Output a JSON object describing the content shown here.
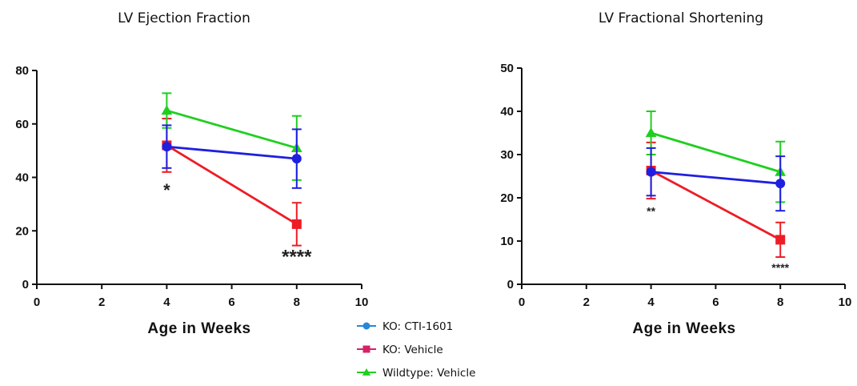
{
  "colors": {
    "ko_cti": "#1f1fe0",
    "ko_vehicle": "#ee1c25",
    "wildtype": "#1fcf1f",
    "legend_ko_cti": "#2a86d6",
    "legend_ko_vehicle": "#d6206a"
  },
  "legend": {
    "items": [
      {
        "label": "KO: CTI-1601",
        "marker": "circle"
      },
      {
        "label": "KO: Vehicle",
        "marker": "square"
      },
      {
        "label": "Wildtype: Vehicle",
        "marker": "triangle"
      }
    ]
  },
  "chart_data": [
    {
      "type": "line",
      "title": "LV Ejection Fraction",
      "xlabel": "Age in Weeks",
      "ylabel": "",
      "xlim": [
        0,
        10
      ],
      "ylim": [
        0,
        80
      ],
      "xticks": [
        0,
        2,
        4,
        6,
        8,
        10
      ],
      "yticks": [
        0,
        20,
        40,
        60,
        80
      ],
      "x": [
        4,
        8
      ],
      "series": [
        {
          "name": "KO: CTI-1601",
          "values": [
            51.5,
            47
          ],
          "errors": [
            8,
            11
          ],
          "marker": "circle"
        },
        {
          "name": "KO: Vehicle",
          "values": [
            52,
            22.5
          ],
          "errors": [
            10,
            8
          ],
          "marker": "square"
        },
        {
          "name": "Wildtype: Vehicle",
          "values": [
            65,
            51
          ],
          "errors": [
            6.5,
            12
          ],
          "marker": "triangle"
        }
      ],
      "annotations": [
        {
          "text": "*",
          "x": 4,
          "y": 33
        },
        {
          "text": "****",
          "x": 8,
          "y": 8
        }
      ]
    },
    {
      "type": "line",
      "title": "LV Fractional Shortening",
      "xlabel": "Age in Weeks",
      "ylabel": "",
      "xlim": [
        0,
        10
      ],
      "ylim": [
        0,
        50
      ],
      "xticks": [
        0,
        2,
        4,
        6,
        8,
        10
      ],
      "yticks": [
        0,
        10,
        20,
        30,
        40,
        50
      ],
      "x": [
        4,
        8
      ],
      "series": [
        {
          "name": "KO: CTI-1601",
          "values": [
            26,
            23.3
          ],
          "errors": [
            5.5,
            6.3
          ],
          "marker": "circle"
        },
        {
          "name": "KO: Vehicle",
          "values": [
            26.3,
            10.3
          ],
          "errors": [
            6.5,
            4
          ],
          "marker": "square"
        },
        {
          "name": "Wildtype: Vehicle",
          "values": [
            35,
            26
          ],
          "errors": [
            5,
            7
          ],
          "marker": "triangle"
        }
      ],
      "annotations": [
        {
          "text": "**",
          "x": 4,
          "y": 16
        },
        {
          "text": "****",
          "x": 8,
          "y": 3
        }
      ]
    }
  ]
}
